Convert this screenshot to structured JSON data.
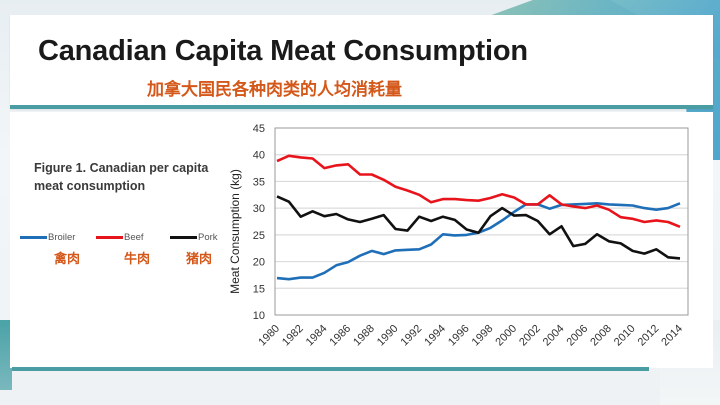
{
  "slide": {
    "title": "Canadian Capita Meat Consumption",
    "subtitle_cn": "加拿大国民各种肉类的人均消耗量",
    "figure_caption": "Figure 1. Canadian per capita meat consumption",
    "accent_color": "#4a9ea3",
    "subtitle_color": "#d4581a"
  },
  "legend": [
    {
      "name": "Broiler",
      "cn": "禽肉",
      "color": "#1f6fb8"
    },
    {
      "name": "Beef",
      "cn": "牛肉",
      "color": "#e8141c"
    },
    {
      "name": "Pork",
      "cn": "猪肉",
      "color": "#111111"
    }
  ],
  "chart_data": {
    "type": "line",
    "title": "",
    "xlabel": "",
    "ylabel": "Meat Consumption (kg)",
    "ylim": [
      10,
      45
    ],
    "yticks": [
      10,
      15,
      20,
      25,
      30,
      35,
      40,
      45
    ],
    "xlim": [
      1980,
      2014
    ],
    "xticks": [
      1980,
      1982,
      1984,
      1986,
      1988,
      1990,
      1992,
      1994,
      1996,
      1998,
      2000,
      2002,
      2004,
      2006,
      2008,
      2010,
      2012,
      2014
    ],
    "grid": "horizontal",
    "legend_position": "left-outside",
    "x": [
      1980,
      1981,
      1982,
      1983,
      1984,
      1985,
      1986,
      1987,
      1988,
      1989,
      1990,
      1991,
      1992,
      1993,
      1994,
      1995,
      1996,
      1997,
      1998,
      1999,
      2000,
      2001,
      2002,
      2003,
      2004,
      2005,
      2006,
      2007,
      2008,
      2009,
      2010,
      2011,
      2012,
      2013,
      2014
    ],
    "series": [
      {
        "name": "Broiler",
        "color": "#1f6fb8",
        "values": [
          16.9,
          16.7,
          17.0,
          17.0,
          17.9,
          19.3,
          19.9,
          21.1,
          22.0,
          21.4,
          22.1,
          22.2,
          22.3,
          23.2,
          25.1,
          24.9,
          25.0,
          25.4,
          26.3,
          27.7,
          29.3,
          30.7,
          30.7,
          29.9,
          30.6,
          30.7,
          30.8,
          30.9,
          30.7,
          30.6,
          30.5,
          30.0,
          29.7,
          30.0,
          30.9
        ]
      },
      {
        "name": "Beef",
        "color": "#e8141c",
        "values": [
          38.8,
          39.8,
          39.5,
          39.3,
          37.5,
          38.0,
          38.2,
          36.3,
          36.3,
          35.3,
          34.0,
          33.3,
          32.5,
          31.1,
          31.7,
          31.7,
          31.5,
          31.4,
          31.9,
          32.6,
          32.0,
          30.7,
          30.7,
          32.4,
          30.7,
          30.3,
          30.0,
          30.5,
          29.7,
          28.3,
          28.0,
          27.4,
          27.7,
          27.4,
          26.5
        ]
      },
      {
        "name": "Pork",
        "color": "#111111",
        "values": [
          32.2,
          31.2,
          28.4,
          29.4,
          28.5,
          28.9,
          27.9,
          27.4,
          28.0,
          28.7,
          26.1,
          25.8,
          28.4,
          27.6,
          28.4,
          27.8,
          26.0,
          25.4,
          28.5,
          30.0,
          28.6,
          28.7,
          27.6,
          25.1,
          26.6,
          22.9,
          23.3,
          25.1,
          23.8,
          23.4,
          22.0,
          21.5,
          22.3,
          20.8,
          20.6
        ]
      }
    ]
  }
}
